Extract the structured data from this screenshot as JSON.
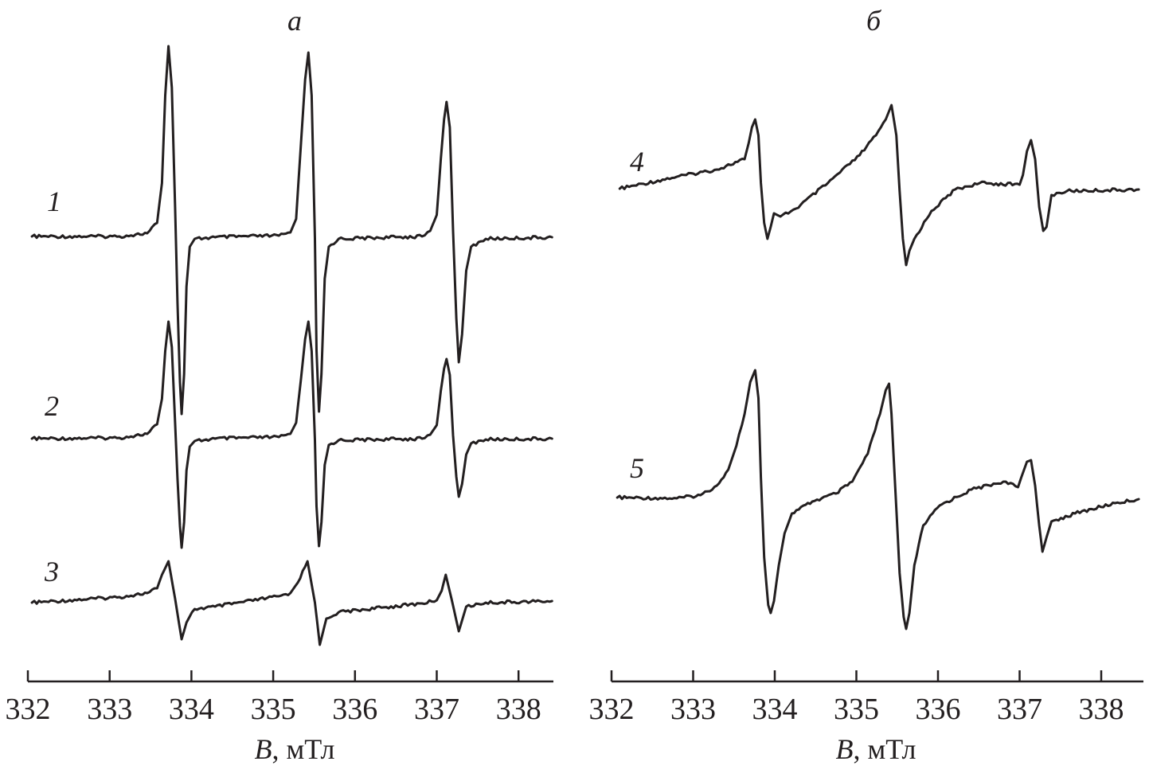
{
  "chart_data": [
    {
      "type": "line",
      "title": "а",
      "xlabel_var": "B",
      "xlabel_unit": ", мТл",
      "xlim": [
        332,
        338.5
      ],
      "xticks": [
        "332",
        "333",
        "334",
        "335",
        "336",
        "337",
        "338"
      ],
      "grid": false,
      "y_units": "relative intensity (a.u.), spectra offset vertically",
      "series": [
        {
          "name": "1",
          "points": [
            [
              332.05,
              0
            ],
            [
              333.12,
              0
            ],
            [
              333.46,
              0.04
            ],
            [
              333.58,
              0.17
            ],
            [
              333.64,
              0.67
            ],
            [
              333.68,
              1.77
            ],
            [
              333.72,
              2.39
            ],
            [
              333.76,
              1.87
            ],
            [
              333.8,
              0.37
            ],
            [
              333.83,
              -0.83
            ],
            [
              333.86,
              -1.83
            ],
            [
              333.88,
              -2.23
            ],
            [
              333.91,
              -1.73
            ],
            [
              333.94,
              -0.63
            ],
            [
              333.98,
              -0.13
            ],
            [
              334.04,
              -0.03
            ],
            [
              334.29,
              -0.01
            ],
            [
              335.07,
              0.01
            ],
            [
              335.21,
              0.05
            ],
            [
              335.28,
              0.22
            ],
            [
              335.34,
              1.17
            ],
            [
              335.39,
              1.97
            ],
            [
              335.43,
              2.31
            ],
            [
              335.47,
              1.77
            ],
            [
              335.51,
              -0.03
            ],
            [
              335.53,
              -1.43
            ],
            [
              335.56,
              -2.2
            ],
            [
              335.59,
              -1.73
            ],
            [
              335.63,
              -0.53
            ],
            [
              335.68,
              -0.13
            ],
            [
              335.8,
              -0.03
            ],
            [
              336.82,
              0
            ],
            [
              336.92,
              0.07
            ],
            [
              337.0,
              0.27
            ],
            [
              337.05,
              0.97
            ],
            [
              337.09,
              1.47
            ],
            [
              337.12,
              1.69
            ],
            [
              337.16,
              1.37
            ],
            [
              337.2,
              0.07
            ],
            [
              337.24,
              -1.03
            ],
            [
              337.27,
              -1.58
            ],
            [
              337.31,
              -1.23
            ],
            [
              337.36,
              -0.43
            ],
            [
              337.42,
              -0.13
            ],
            [
              337.6,
              -0.03
            ],
            [
              338.41,
              -0.01
            ]
          ]
        },
        {
          "name": "2",
          "points": [
            [
              332.05,
              0
            ],
            [
              333.12,
              0.01
            ],
            [
              333.46,
              0.06
            ],
            [
              333.58,
              0.18
            ],
            [
              333.64,
              0.5
            ],
            [
              333.68,
              1.1
            ],
            [
              333.72,
              1.47
            ],
            [
              333.76,
              1.15
            ],
            [
              333.8,
              0.2
            ],
            [
              333.83,
              -0.5
            ],
            [
              333.86,
              -1.1
            ],
            [
              333.88,
              -1.37
            ],
            [
              333.91,
              -1.05
            ],
            [
              333.94,
              -0.4
            ],
            [
              333.98,
              -0.1
            ],
            [
              334.04,
              -0.03
            ],
            [
              334.29,
              0
            ],
            [
              335.07,
              0.02
            ],
            [
              335.21,
              0.06
            ],
            [
              335.28,
              0.2
            ],
            [
              335.34,
              0.75
            ],
            [
              335.39,
              1.25
            ],
            [
              335.43,
              1.47
            ],
            [
              335.47,
              1.1
            ],
            [
              335.51,
              -0.02
            ],
            [
              335.53,
              -0.85
            ],
            [
              335.56,
              -1.35
            ],
            [
              335.59,
              -1.05
            ],
            [
              335.63,
              -0.33
            ],
            [
              335.68,
              -0.08
            ],
            [
              335.8,
              -0.02
            ],
            [
              336.82,
              0
            ],
            [
              336.92,
              0.05
            ],
            [
              337.0,
              0.17
            ],
            [
              337.05,
              0.6
            ],
            [
              337.09,
              0.88
            ],
            [
              337.12,
              1.0
            ],
            [
              337.16,
              0.8
            ],
            [
              337.2,
              0.04
            ],
            [
              337.24,
              -0.48
            ],
            [
              337.27,
              -0.73
            ],
            [
              337.31,
              -0.57
            ],
            [
              337.36,
              -0.2
            ],
            [
              337.42,
              -0.06
            ],
            [
              337.6,
              -0.01
            ],
            [
              338.41,
              0
            ]
          ]
        },
        {
          "name": "3",
          "points": [
            [
              332.05,
              0
            ],
            [
              333.12,
              0.07
            ],
            [
              333.46,
              0.12
            ],
            [
              333.58,
              0.18
            ],
            [
              333.64,
              0.35
            ],
            [
              333.72,
              0.52
            ],
            [
              333.8,
              0.05
            ],
            [
              333.88,
              -0.46
            ],
            [
              333.94,
              -0.25
            ],
            [
              334.04,
              -0.08
            ],
            [
              334.29,
              -0.05
            ],
            [
              335.07,
              0.08
            ],
            [
              335.21,
              0.12
            ],
            [
              335.3,
              0.25
            ],
            [
              335.42,
              0.52
            ],
            [
              335.51,
              0
            ],
            [
              335.57,
              -0.53
            ],
            [
              335.65,
              -0.2
            ],
            [
              335.8,
              -0.12
            ],
            [
              336.82,
              -0.01
            ],
            [
              337.0,
              0.03
            ],
            [
              337.06,
              0.15
            ],
            [
              337.11,
              0.35
            ],
            [
              337.18,
              0.05
            ],
            [
              337.27,
              -0.36
            ],
            [
              337.36,
              -0.05
            ],
            [
              337.6,
              0
            ],
            [
              338.41,
              0.02
            ]
          ]
        }
      ]
    },
    {
      "type": "line",
      "title": "б",
      "xlabel_var": "B",
      "xlabel_unit": ", мТл",
      "xlim": [
        332,
        338.5
      ],
      "xticks": [
        "332",
        "333",
        "334",
        "335",
        "336",
        "337",
        "338"
      ],
      "grid": false,
      "y_units": "relative intensity (a.u.), spectra offset vertically",
      "series": [
        {
          "name": "4",
          "points": [
            [
              332.1,
              0
            ],
            [
              332.8,
              0.15
            ],
            [
              333.29,
              0.24
            ],
            [
              333.63,
              0.37
            ],
            [
              333.68,
              0.57
            ],
            [
              333.72,
              0.77
            ],
            [
              333.76,
              0.87
            ],
            [
              333.8,
              0.67
            ],
            [
              333.83,
              0.07
            ],
            [
              333.87,
              -0.43
            ],
            [
              333.91,
              -0.63
            ],
            [
              333.95,
              -0.48
            ],
            [
              333.99,
              -0.31
            ],
            [
              334.07,
              -0.35
            ],
            [
              334.26,
              -0.25
            ],
            [
              334.65,
              0.07
            ],
            [
              335.04,
              0.42
            ],
            [
              335.24,
              0.67
            ],
            [
              335.36,
              0.87
            ],
            [
              335.43,
              1.05
            ],
            [
              335.49,
              0.67
            ],
            [
              335.53,
              -0.03
            ],
            [
              335.57,
              -0.63
            ],
            [
              335.61,
              -0.96
            ],
            [
              335.65,
              -0.78
            ],
            [
              335.71,
              -0.63
            ],
            [
              335.92,
              -0.28
            ],
            [
              336.21,
              -0.01
            ],
            [
              336.51,
              0.07
            ],
            [
              337.0,
              0.05
            ],
            [
              337.04,
              0.17
            ],
            [
              337.09,
              0.47
            ],
            [
              337.14,
              0.61
            ],
            [
              337.19,
              0.37
            ],
            [
              337.24,
              -0.23
            ],
            [
              337.29,
              -0.53
            ],
            [
              337.33,
              -0.48
            ],
            [
              337.39,
              -0.08
            ],
            [
              337.58,
              -0.03
            ],
            [
              338.46,
              -0.01
            ]
          ]
        },
        {
          "name": "5",
          "points": [
            [
              332.07,
              0
            ],
            [
              332.8,
              -0.01
            ],
            [
              333.09,
              0.03
            ],
            [
              333.29,
              0.15
            ],
            [
              333.43,
              0.35
            ],
            [
              333.53,
              0.65
            ],
            [
              333.63,
              1.05
            ],
            [
              333.7,
              1.45
            ],
            [
              333.76,
              1.6
            ],
            [
              333.8,
              1.25
            ],
            [
              333.83,
              0.25
            ],
            [
              333.87,
              -0.75
            ],
            [
              333.92,
              -1.35
            ],
            [
              333.95,
              -1.45
            ],
            [
              333.99,
              -1.3
            ],
            [
              334.05,
              -0.85
            ],
            [
              334.12,
              -0.45
            ],
            [
              334.21,
              -0.2
            ],
            [
              334.46,
              -0.05
            ],
            [
              334.75,
              0.05
            ],
            [
              334.95,
              0.2
            ],
            [
              335.14,
              0.55
            ],
            [
              335.29,
              1.05
            ],
            [
              335.36,
              1.35
            ],
            [
              335.4,
              1.43
            ],
            [
              335.43,
              1.05
            ],
            [
              335.48,
              0.05
            ],
            [
              335.53,
              -0.95
            ],
            [
              335.58,
              -1.5
            ],
            [
              335.61,
              -1.65
            ],
            [
              335.65,
              -1.45
            ],
            [
              335.71,
              -0.85
            ],
            [
              335.82,
              -0.35
            ],
            [
              336.02,
              -0.1
            ],
            [
              336.41,
              0.1
            ],
            [
              336.8,
              0.2
            ],
            [
              336.98,
              0.13
            ],
            [
              337.02,
              0.25
            ],
            [
              337.09,
              0.45
            ],
            [
              337.14,
              0.47
            ],
            [
              337.19,
              0.15
            ],
            [
              337.24,
              -0.35
            ],
            [
              337.28,
              -0.68
            ],
            [
              337.33,
              -0.5
            ],
            [
              337.39,
              -0.3
            ],
            [
              337.68,
              -0.2
            ],
            [
              338.17,
              -0.07
            ],
            [
              338.46,
              -0.02
            ]
          ]
        }
      ]
    }
  ],
  "colors": {
    "ink": "#231f20",
    "background": "#ffffff"
  }
}
